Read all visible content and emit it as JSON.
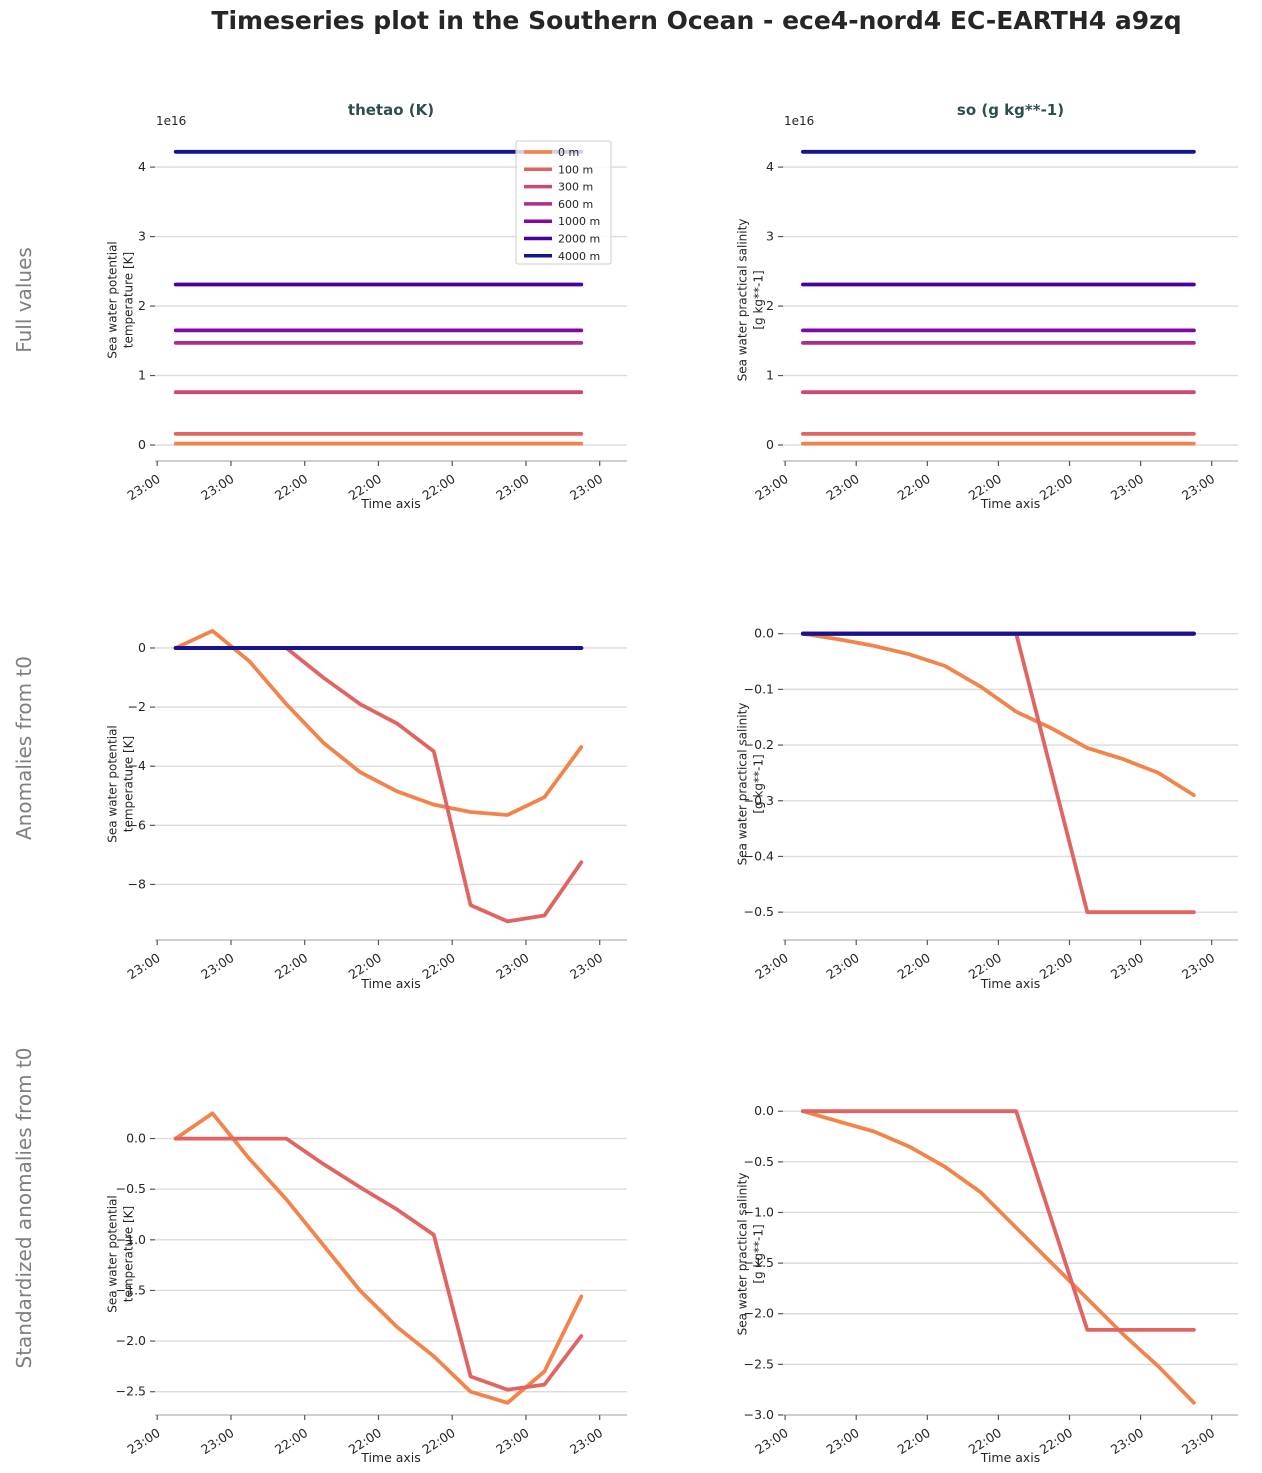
{
  "figure": {
    "title": "Timeseries plot in the Southern Ocean - ece4-nord4 EC-EARTH4 a9zq"
  },
  "columns": [
    {
      "title": "thetao (K)"
    },
    {
      "title": "so (g kg**-1)"
    }
  ],
  "rows": [
    {
      "label": "Full values"
    },
    {
      "label": "Anomalies from t0"
    },
    {
      "label": "Standardized anomalies from t0"
    }
  ],
  "legend": {
    "position": "upper right of first subplot",
    "entries": [
      {
        "label": "0 m",
        "color": "#f2844b"
      },
      {
        "label": "100 m",
        "color": "#e16462"
      },
      {
        "label": "300 m",
        "color": "#cc4778"
      },
      {
        "label": "600 m",
        "color": "#b12a90"
      },
      {
        "label": "1000 m",
        "color": "#8405a7"
      },
      {
        "label": "2000 m",
        "color": "#46039f"
      },
      {
        "label": "4000 m",
        "color": "#14148c"
      }
    ]
  },
  "chart_data": [
    {
      "id": "full-thetao",
      "type": "line",
      "title": "thetao (K)",
      "row": "Full values",
      "xlabel": "Time axis",
      "ylabel": "Sea water potential\ntemperature [K]",
      "offset_text": "1e16",
      "grid": true,
      "x": [
        0,
        1,
        2,
        3,
        4,
        5,
        6,
        7,
        8,
        9,
        10,
        11
      ],
      "x_tick_positions": [
        -0.5,
        1.5,
        3.5,
        5.5,
        7.5,
        9.5,
        11.5
      ],
      "x_tick_labels": [
        "23:00",
        "23:00",
        "22:00",
        "22:00",
        "22:00",
        "23:00",
        "23:00"
      ],
      "xlim": [
        -0.56,
        12.24
      ],
      "y_ticks": {
        "values": [
          0,
          1,
          2,
          3,
          4
        ],
        "labels": [
          "0",
          "1",
          "2",
          "3",
          "4"
        ]
      },
      "ylim": [
        -0.23,
        4.39
      ],
      "show_legend": true,
      "series": [
        {
          "name": "0 m",
          "values": 0.02
        },
        {
          "name": "100 m",
          "values": 0.16
        },
        {
          "name": "300 m",
          "values": 0.76
        },
        {
          "name": "600 m",
          "values": 1.47
        },
        {
          "name": "1000 m",
          "values": 1.65
        },
        {
          "name": "2000 m",
          "values": 2.31
        },
        {
          "name": "4000 m",
          "values": 4.22
        }
      ]
    },
    {
      "id": "full-so",
      "type": "line",
      "title": "so (g kg**-1)",
      "row": "Full values",
      "xlabel": "Time axis",
      "ylabel": "Sea water practical salinity\n[g kg**-1]",
      "offset_text": "1e16",
      "grid": true,
      "x": [
        0,
        1,
        2,
        3,
        4,
        5,
        6,
        7,
        8,
        9,
        10,
        11
      ],
      "x_tick_positions": [
        -0.5,
        1.5,
        3.5,
        5.5,
        7.5,
        9.5,
        11.5
      ],
      "x_tick_labels": [
        "23:00",
        "23:00",
        "22:00",
        "22:00",
        "22:00",
        "23:00",
        "23:00"
      ],
      "xlim": [
        -0.56,
        12.24
      ],
      "y_ticks": {
        "values": [
          0,
          1,
          2,
          3,
          4
        ],
        "labels": [
          "0",
          "1",
          "2",
          "3",
          "4"
        ]
      },
      "ylim": [
        -0.23,
        4.39
      ],
      "show_legend": false,
      "series": [
        {
          "name": "0 m",
          "values": 0.02
        },
        {
          "name": "100 m",
          "values": 0.16
        },
        {
          "name": "300 m",
          "values": 0.76
        },
        {
          "name": "600 m",
          "values": 1.47
        },
        {
          "name": "1000 m",
          "values": 1.65
        },
        {
          "name": "2000 m",
          "values": 2.31
        },
        {
          "name": "4000 m",
          "values": 4.22
        }
      ]
    },
    {
      "id": "anom-thetao",
      "type": "line",
      "title": "thetao (K)",
      "row": "Anomalies from t0",
      "xlabel": "Time axis",
      "ylabel": "Sea water potential\ntemperature [K]",
      "offset_text": "",
      "grid": true,
      "x": [
        0,
        1,
        2,
        3,
        4,
        5,
        6,
        7,
        8,
        9,
        10,
        11
      ],
      "x_tick_positions": [
        -0.5,
        1.5,
        3.5,
        5.5,
        7.5,
        9.5,
        11.5
      ],
      "x_tick_labels": [
        "23:00",
        "23:00",
        "22:00",
        "22:00",
        "22:00",
        "23:00",
        "23:00"
      ],
      "xlim": [
        -0.56,
        12.24
      ],
      "y_ticks": {
        "values": [
          0,
          -2,
          -4,
          -6,
          -8
        ],
        "labels": [
          "0",
          "−2",
          "−4",
          "−6",
          "−8"
        ]
      },
      "ylim": [
        -9.88,
        0.71
      ],
      "show_legend": false,
      "series": [
        {
          "name": "0 m",
          "values": [
            0,
            0.58,
            -0.45,
            -1.9,
            -3.2,
            -4.2,
            -4.85,
            -5.3,
            -5.55,
            -5.65,
            -5.05,
            -3.35
          ]
        },
        {
          "name": "100 m",
          "values": [
            0,
            0,
            0,
            0,
            -1.0,
            -1.9,
            -2.55,
            -3.5,
            -8.7,
            -9.25,
            -9.05,
            -7.25
          ]
        },
        {
          "name": "300 m",
          "values": 0
        },
        {
          "name": "600 m",
          "values": 0
        },
        {
          "name": "1000 m",
          "values": 0
        },
        {
          "name": "2000 m",
          "values": 0
        },
        {
          "name": "4000 m",
          "values": 0
        }
      ]
    },
    {
      "id": "anom-so",
      "type": "line",
      "title": "so (g kg**-1)",
      "row": "Anomalies from t0",
      "xlabel": "Time axis",
      "ylabel": "Sea water practical salinity\n[g kg**-1]",
      "offset_text": "",
      "grid": true,
      "x": [
        0,
        1,
        2,
        3,
        4,
        5,
        6,
        7,
        8,
        9,
        10,
        11
      ],
      "x_tick_positions": [
        -0.5,
        1.5,
        3.5,
        5.5,
        7.5,
        9.5,
        11.5
      ],
      "x_tick_labels": [
        "23:00",
        "23:00",
        "22:00",
        "22:00",
        "22:00",
        "23:00",
        "23:00"
      ],
      "xlim": [
        -0.56,
        12.24
      ],
      "y_ticks": {
        "values": [
          0,
          -0.1,
          -0.2,
          -0.3,
          -0.4,
          -0.5
        ],
        "labels": [
          "0.0",
          "−0.1",
          "−0.2",
          "−0.3",
          "−0.4",
          "−0.5"
        ]
      },
      "ylim": [
        -0.55,
        0.012
      ],
      "show_legend": false,
      "series": [
        {
          "name": "0 m",
          "values": [
            0,
            -0.01,
            -0.022,
            -0.037,
            -0.058,
            -0.095,
            -0.14,
            -0.17,
            -0.205,
            -0.225,
            -0.25,
            -0.29
          ]
        },
        {
          "name": "100 m",
          "values": [
            0,
            0,
            0,
            0,
            0,
            0,
            0,
            -0.25,
            -0.5,
            -0.5,
            -0.5,
            -0.5
          ]
        },
        {
          "name": "300 m",
          "values": 0
        },
        {
          "name": "600 m",
          "values": 0
        },
        {
          "name": "1000 m",
          "values": 0
        },
        {
          "name": "2000 m",
          "values": 0
        },
        {
          "name": "4000 m",
          "values": 0
        }
      ]
    },
    {
      "id": "std-thetao",
      "type": "line",
      "title": "thetao (K)",
      "row": "Standardized anomalies from t0",
      "xlabel": "Time axis",
      "ylabel": "Sea water potential\ntemperature [K]",
      "offset_text": "",
      "grid": true,
      "x": [
        0,
        1,
        2,
        3,
        4,
        5,
        6,
        7,
        8,
        9,
        10,
        11
      ],
      "x_tick_positions": [
        -0.5,
        1.5,
        3.5,
        5.5,
        7.5,
        9.5,
        11.5
      ],
      "x_tick_labels": [
        "23:00",
        "23:00",
        "22:00",
        "22:00",
        "22:00",
        "23:00",
        "23:00"
      ],
      "xlim": [
        -0.56,
        12.24
      ],
      "y_ticks": {
        "values": [
          0,
          -0.5,
          -1.0,
          -1.5,
          -2.0,
          -2.5
        ],
        "labels": [
          "0.0",
          "−0.5",
          "−1.0",
          "−1.5",
          "−2.0",
          "−2.5"
        ]
      },
      "ylim": [
        -2.73,
        0.45
      ],
      "show_legend": false,
      "series": [
        {
          "name": "0 m",
          "values": [
            0,
            0.25,
            -0.2,
            -0.6,
            -1.05,
            -1.5,
            -1.86,
            -2.15,
            -2.5,
            -2.61,
            -2.3,
            -1.56
          ]
        },
        {
          "name": "100 m",
          "values": [
            0,
            0,
            0,
            0,
            -0.25,
            -0.48,
            -0.7,
            -0.95,
            -2.35,
            -2.48,
            -2.43,
            -1.95
          ]
        }
      ]
    },
    {
      "id": "std-so",
      "type": "line",
      "title": "so (g kg**-1)",
      "row": "Standardized anomalies from t0",
      "xlabel": "Time axis",
      "ylabel": "Sea water practical salinity\n[g kg**-1]",
      "offset_text": "",
      "grid": true,
      "x": [
        0,
        1,
        2,
        3,
        4,
        5,
        6,
        7,
        8,
        9,
        10,
        11
      ],
      "x_tick_positions": [
        -0.5,
        1.5,
        3.5,
        5.5,
        7.5,
        9.5,
        11.5
      ],
      "x_tick_labels": [
        "23:00",
        "23:00",
        "22:00",
        "22:00",
        "22:00",
        "23:00",
        "23:00"
      ],
      "xlim": [
        -0.56,
        12.24
      ],
      "y_ticks": {
        "values": [
          0,
          -0.5,
          -1.0,
          -1.5,
          -2.0,
          -2.5,
          -3.0
        ],
        "labels": [
          "0.0",
          "−0.5",
          "−1.0",
          "−1.5",
          "−2.0",
          "−2.5",
          "−3.0"
        ]
      },
      "ylim": [
        -3.0,
        0.18
      ],
      "show_legend": false,
      "series": [
        {
          "name": "0 m",
          "values": [
            0,
            -0.1,
            -0.2,
            -0.35,
            -0.55,
            -0.8,
            -1.15,
            -1.5,
            -1.85,
            -2.2,
            -2.52,
            -2.88
          ]
        },
        {
          "name": "100 m",
          "values": [
            0,
            0,
            0,
            0,
            0,
            0,
            0,
            -1.08,
            -2.16,
            -2.16,
            -2.16,
            -2.16
          ]
        }
      ]
    }
  ]
}
